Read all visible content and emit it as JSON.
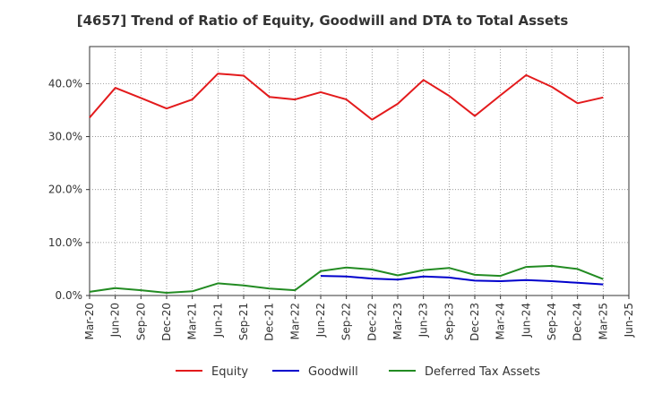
{
  "chart_data": {
    "type": "line",
    "title": "[4657]  Trend of Ratio of Equity, Goodwill and DTA to Total Assets",
    "xlabel": "",
    "ylabel": "",
    "categories": [
      "Mar-20",
      "Jun-20",
      "Sep-20",
      "Dec-20",
      "Mar-21",
      "Jun-21",
      "Sep-21",
      "Dec-21",
      "Mar-22",
      "Jun-22",
      "Sep-22",
      "Dec-22",
      "Mar-23",
      "Jun-23",
      "Sep-23",
      "Dec-23",
      "Mar-24",
      "Jun-24",
      "Sep-24",
      "Dec-24",
      "Mar-25",
      "Jun-25"
    ],
    "ylim": [
      0,
      47
    ],
    "yticks": [
      0,
      10,
      20,
      30,
      40
    ],
    "ytick_labels": [
      "0.0%",
      "10.0%",
      "20.0%",
      "30.0%",
      "40.0%"
    ],
    "grid": true,
    "legend_position": "bottom",
    "series": [
      {
        "name": "Equity",
        "color": "#e31a1c",
        "values": [
          33.6,
          39.2,
          37.3,
          35.3,
          37.0,
          41.9,
          41.5,
          37.5,
          37.0,
          38.4,
          37.0,
          33.2,
          36.2,
          40.7,
          37.7,
          33.9,
          37.8,
          41.6,
          39.4,
          36.3,
          37.4,
          null
        ]
      },
      {
        "name": "Goodwill",
        "color": "#0000cc",
        "values": [
          null,
          null,
          null,
          null,
          null,
          null,
          null,
          null,
          null,
          3.7,
          3.6,
          3.2,
          3.0,
          3.6,
          3.4,
          2.8,
          2.7,
          2.9,
          2.7,
          2.4,
          2.1,
          null
        ]
      },
      {
        "name": "Deferred Tax Assets",
        "color": "#228b22",
        "values": [
          0.7,
          1.4,
          1.0,
          0.5,
          0.8,
          2.3,
          1.9,
          1.3,
          1.0,
          4.6,
          5.3,
          4.9,
          3.8,
          4.8,
          5.2,
          3.9,
          3.7,
          5.4,
          5.6,
          5.0,
          3.1,
          null
        ]
      }
    ]
  }
}
